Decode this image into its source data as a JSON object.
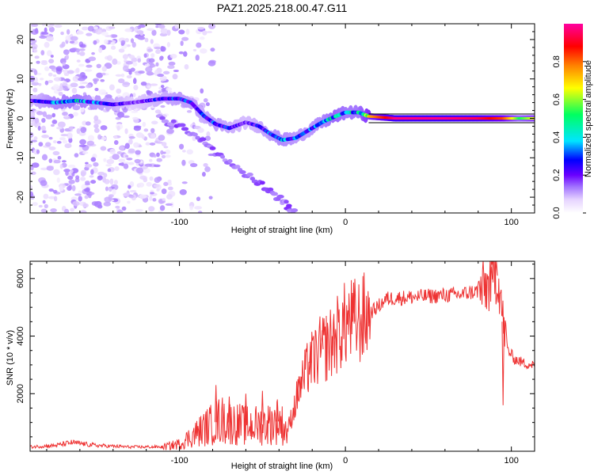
{
  "title": "PAZ1.2025.218.00.47.G11",
  "chart_data": [
    {
      "type": "heatmap",
      "xlabel": "Height of straight line (km)",
      "ylabel": "Frequency (Hz)",
      "xlim": [
        -190,
        114
      ],
      "ylim": [
        -24,
        24
      ],
      "x_ticks": [
        -100,
        0,
        100
      ],
      "y_ticks": [
        -20,
        -10,
        0,
        10,
        20
      ],
      "colorbar": {
        "label": "Normalized spectral amplitude",
        "range": [
          0,
          1
        ],
        "ticks": [
          0.0,
          0.2,
          0.4,
          0.6,
          0.8
        ],
        "tick_labels": [
          "0.0",
          "0.2",
          "0.4",
          "0.6",
          "0.8"
        ],
        "colormap": [
          "#ffffff",
          "#e6d4ff",
          "#a070ff",
          "#6a00ff",
          "#0000ff",
          "#00e5ff",
          "#00ff60",
          "#ffff00",
          "#ff8000",
          "#ff0000",
          "#ff00a0"
        ]
      },
      "main_line": [
        {
          "x": -190,
          "y": 4.5,
          "a": 0.35
        },
        {
          "x": -175,
          "y": 4.0,
          "a": 0.5
        },
        {
          "x": -162,
          "y": 4.5,
          "a": 0.55
        },
        {
          "x": -150,
          "y": 4.0,
          "a": 0.45
        },
        {
          "x": -140,
          "y": 3.5,
          "a": 0.4
        },
        {
          "x": -128,
          "y": 4.0,
          "a": 0.3
        },
        {
          "x": -110,
          "y": 5.0,
          "a": 0.4
        },
        {
          "x": -100,
          "y": 5.0,
          "a": 0.45
        },
        {
          "x": -93,
          "y": 4.0,
          "a": 0.45
        },
        {
          "x": -85,
          "y": 0.5,
          "a": 0.4
        },
        {
          "x": -78,
          "y": -1.5,
          "a": 0.45
        },
        {
          "x": -70,
          "y": -2.5,
          "a": 0.4
        },
        {
          "x": -60,
          "y": -1.0,
          "a": 0.35
        },
        {
          "x": -52,
          "y": -2.0,
          "a": 0.4
        },
        {
          "x": -45,
          "y": -4.0,
          "a": 0.45
        },
        {
          "x": -38,
          "y": -5.5,
          "a": 0.5
        },
        {
          "x": -30,
          "y": -5.0,
          "a": 0.45
        },
        {
          "x": -22,
          "y": -3.0,
          "a": 0.45
        },
        {
          "x": -14,
          "y": -1.0,
          "a": 0.5
        },
        {
          "x": -6,
          "y": 0.5,
          "a": 0.6
        },
        {
          "x": 0,
          "y": 1.5,
          "a": 0.55
        },
        {
          "x": 8,
          "y": 1.5,
          "a": 0.55
        },
        {
          "x": 14,
          "y": 0.5,
          "a": 0.75
        },
        {
          "x": 30,
          "y": 0.0,
          "a": 0.98
        },
        {
          "x": 60,
          "y": 0.0,
          "a": 0.98
        },
        {
          "x": 80,
          "y": 0.0,
          "a": 0.95
        },
        {
          "x": 95,
          "y": 0.0,
          "a": 0.85
        },
        {
          "x": 105,
          "y": 0.0,
          "a": 0.6
        },
        {
          "x": 114,
          "y": 0.0,
          "a": 0.7
        }
      ],
      "branch_line": [
        {
          "x": -112,
          "y": 0.0
        },
        {
          "x": -95,
          "y": -3.0
        },
        {
          "x": -80,
          "y": -8.0
        },
        {
          "x": -65,
          "y": -13.0
        },
        {
          "x": -50,
          "y": -17.0
        },
        {
          "x": -38,
          "y": -21.0
        },
        {
          "x": -30,
          "y": -24.0
        }
      ]
    },
    {
      "type": "line",
      "xlabel": "Height of straight line (km)",
      "ylabel": "SNR (10 * v/v)",
      "xlim": [
        -190,
        114
      ],
      "ylim": [
        0,
        6600
      ],
      "x_ticks": [
        -100,
        0,
        100
      ],
      "y_ticks": [
        2000,
        4000,
        6000
      ],
      "color": "#ee3333",
      "series": [
        {
          "x": [
            -190,
            -175,
            -165,
            -150,
            -130,
            -110,
            -100,
            -92,
            -85,
            -75,
            -70,
            -60,
            -50,
            -40,
            -35,
            -28,
            -22,
            -15,
            -8,
            -2,
            2,
            8,
            15,
            25,
            40,
            55,
            70,
            82,
            87,
            90,
            93,
            95,
            98,
            102,
            108,
            114
          ],
          "y": [
            150,
            200,
            300,
            200,
            150,
            150,
            250,
            550,
            800,
            1100,
            1000,
            900,
            900,
            1050,
            700,
            2100,
            3000,
            3500,
            3800,
            4300,
            4500,
            4500,
            4800,
            5300,
            5350,
            5400,
            5450,
            5600,
            5800,
            6300,
            5700,
            4500,
            3500,
            3200,
            3050,
            3000
          ]
        }
      ],
      "spikes": [
        {
          "x": -78,
          "y": 2300
        },
        {
          "x": -70,
          "y": 1900
        },
        {
          "x": -60,
          "y": 2000
        },
        {
          "x": -50,
          "y": 2100
        },
        {
          "x": -41,
          "y": 1800
        },
        {
          "x": -28,
          "y": 2600
        },
        {
          "x": -21,
          "y": 3800
        },
        {
          "x": -14,
          "y": 4200
        },
        {
          "x": -7,
          "y": 4600
        },
        {
          "x": 5,
          "y": 5600
        },
        {
          "x": 88,
          "y": 6400
        },
        {
          "x": 91,
          "y": 6600
        },
        {
          "x": 95,
          "y": 1600
        }
      ]
    }
  ]
}
